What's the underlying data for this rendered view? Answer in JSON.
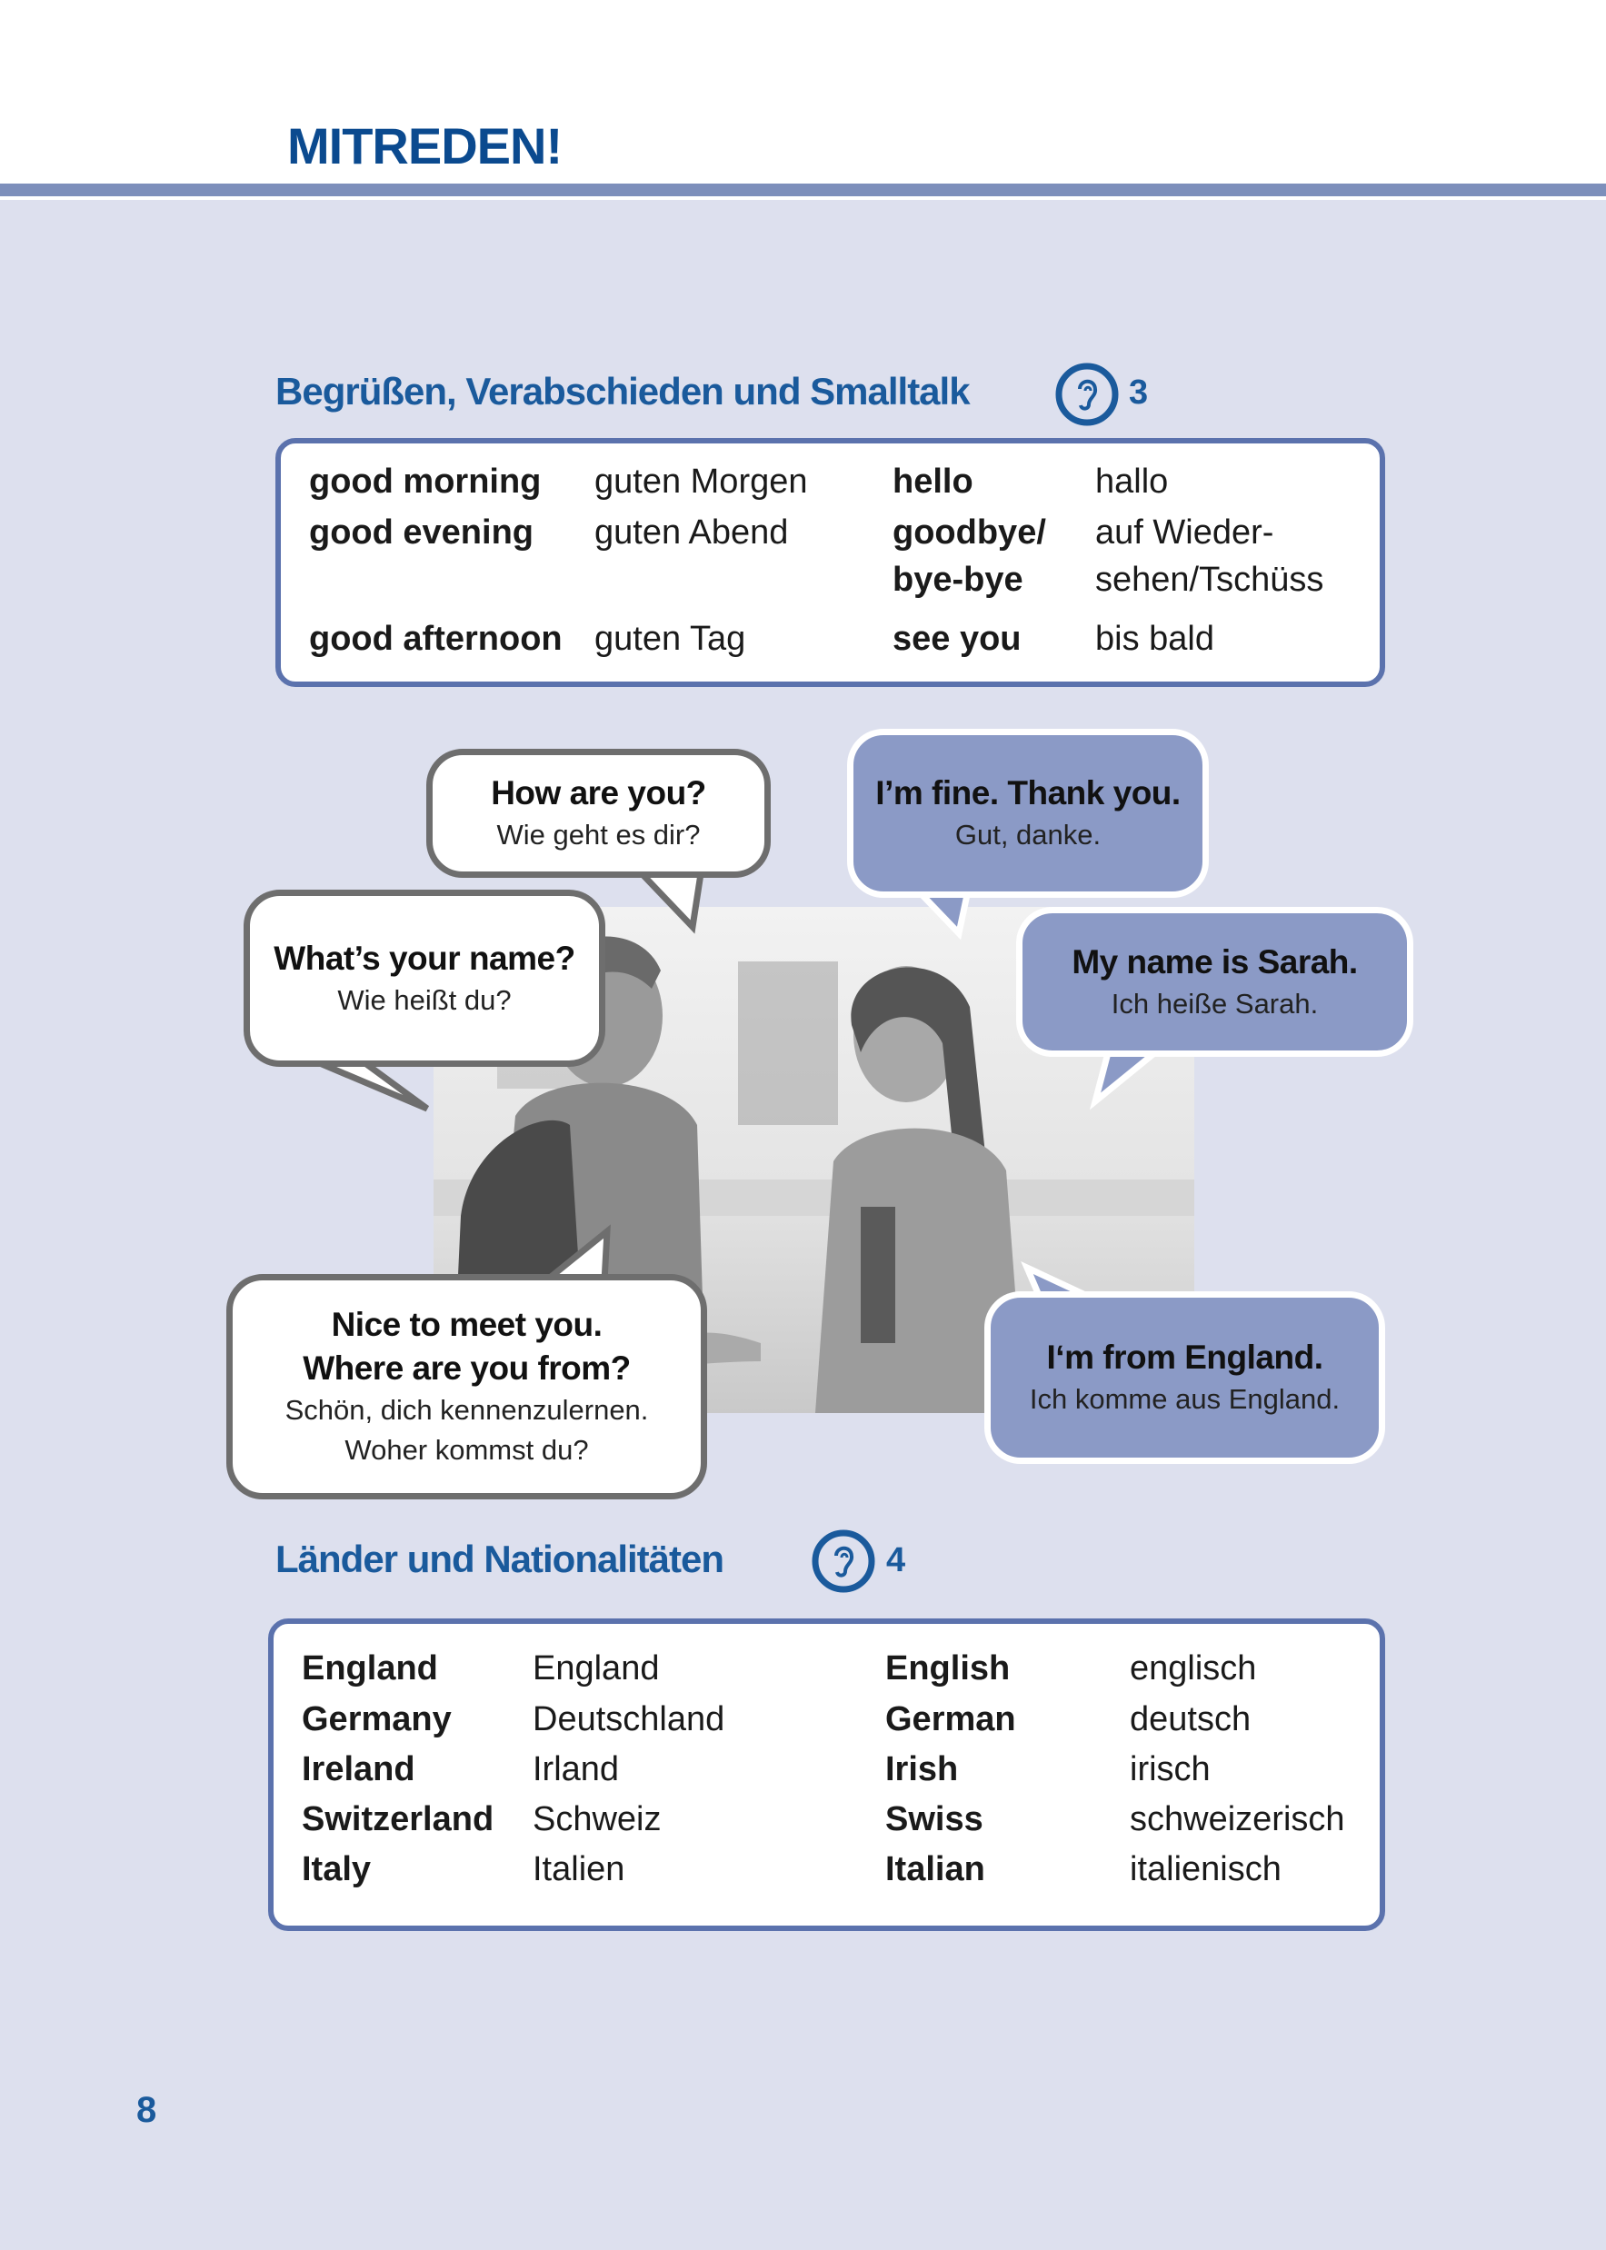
{
  "header": {
    "title": "MITREDEN!"
  },
  "section1": {
    "heading": "Begrüßen, Verabschieden und Smalltalk",
    "track_icon": "ear-audio-icon",
    "track": "3",
    "rows": [
      {
        "en": "good morning",
        "de": "guten Morgen",
        "en2": "hello",
        "de2": "hallo"
      },
      {
        "en": "good evening",
        "de": "guten Abend",
        "en2": "goodbye/",
        "de2": "auf Wieder-"
      },
      {
        "en": "",
        "de": "",
        "en2": "bye-bye",
        "de2": "sehen/Tschüss"
      },
      {
        "en": "good afternoon",
        "de": "guten Tag",
        "en2": "see you",
        "de2": "bis bald"
      }
    ]
  },
  "dialogue": {
    "how": {
      "en": "How are you?",
      "de": "Wie geht es dir?"
    },
    "fine": {
      "en": "I’m fine. Thank you.",
      "de": "Gut, danke."
    },
    "name": {
      "en": "What’s your name?",
      "de": "Wie heißt du?"
    },
    "sarah": {
      "en": "My name is Sarah.",
      "de": "Ich heiße Sarah."
    },
    "nice": {
      "en1": "Nice to meet you.",
      "en2": "Where are you from?",
      "de1": "Schön, dich kennenzulernen.",
      "de2": "Woher kommst du?"
    },
    "england": {
      "en": "I‘m from England.",
      "de": "Ich komme aus England."
    }
  },
  "section2": {
    "heading": "Länder und Nationalitäten",
    "track_icon": "ear-audio-icon",
    "track": "4",
    "rows": [
      {
        "country": "England",
        "land": "England",
        "nat": "English",
        "adj": "englisch"
      },
      {
        "country": "Germany",
        "land": "Deutschland",
        "nat": "German",
        "adj": "deutsch"
      },
      {
        "country": "Ireland",
        "land": "Irland",
        "nat": "Irish",
        "adj": "irisch"
      },
      {
        "country": "Switzerland",
        "land": "Schweiz",
        "nat": "Swiss",
        "adj": "schweizerisch"
      },
      {
        "country": "Italy",
        "land": "Italien",
        "nat": "Italian",
        "adj": "italienisch"
      }
    ]
  },
  "page_number": "8",
  "colors": {
    "brand_blue": "#0b4a8f",
    "box_border": "#5b72ad",
    "bubble_blue": "#8b9ac6",
    "background": "#dde0ee"
  }
}
